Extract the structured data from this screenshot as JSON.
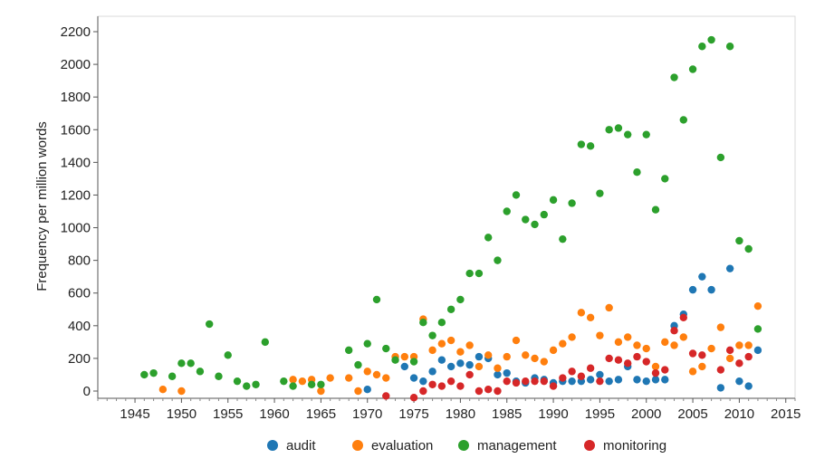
{
  "chart_data": {
    "type": "scatter",
    "title": "",
    "xlabel": "",
    "ylabel": "Frequency per million words",
    "xlim": [
      1941,
      2016
    ],
    "ylim": [
      0,
      2250
    ],
    "x_ticks": [
      1945,
      1950,
      1955,
      1960,
      1965,
      1970,
      1975,
      1980,
      1985,
      1990,
      1995,
      2000,
      2005,
      2010,
      2015
    ],
    "y_ticks": [
      0,
      200,
      400,
      600,
      800,
      1000,
      1200,
      1400,
      1600,
      1800,
      2000,
      2200
    ],
    "grid": false,
    "legend_position": "bottom",
    "series": [
      {
        "name": "audit",
        "color": "#1f77b4",
        "points": [
          [
            1970,
            10
          ],
          [
            1974,
            150
          ],
          [
            1975,
            80
          ],
          [
            1976,
            60
          ],
          [
            1977,
            120
          ],
          [
            1978,
            190
          ],
          [
            1979,
            150
          ],
          [
            1980,
            170
          ],
          [
            1981,
            160
          ],
          [
            1982,
            210
          ],
          [
            1983,
            200
          ],
          [
            1984,
            100
          ],
          [
            1985,
            110
          ],
          [
            1986,
            60
          ],
          [
            1987,
            50
          ],
          [
            1988,
            80
          ],
          [
            1989,
            70
          ],
          [
            1990,
            50
          ],
          [
            1991,
            60
          ],
          [
            1992,
            60
          ],
          [
            1993,
            60
          ],
          [
            1994,
            70
          ],
          [
            1995,
            100
          ],
          [
            1996,
            60
          ],
          [
            1997,
            70
          ],
          [
            1998,
            150
          ],
          [
            1999,
            70
          ],
          [
            2000,
            60
          ],
          [
            2001,
            70
          ],
          [
            2002,
            70
          ],
          [
            2003,
            400
          ],
          [
            2004,
            470
          ],
          [
            2005,
            620
          ],
          [
            2006,
            700
          ],
          [
            2007,
            620
          ],
          [
            2008,
            20
          ],
          [
            2009,
            750
          ],
          [
            2010,
            60
          ],
          [
            2011,
            30
          ],
          [
            2012,
            250
          ]
        ]
      },
      {
        "name": "evaluation",
        "color": "#ff7f0e",
        "points": [
          [
            1948,
            10
          ],
          [
            1950,
            0
          ],
          [
            1962,
            70
          ],
          [
            1963,
            60
          ],
          [
            1964,
            70
          ],
          [
            1965,
            0
          ],
          [
            1966,
            80
          ],
          [
            1968,
            80
          ],
          [
            1969,
            0
          ],
          [
            1970,
            120
          ],
          [
            1971,
            100
          ],
          [
            1972,
            80
          ],
          [
            1973,
            210
          ],
          [
            1974,
            210
          ],
          [
            1975,
            210
          ],
          [
            1976,
            440
          ],
          [
            1977,
            250
          ],
          [
            1978,
            290
          ],
          [
            1979,
            310
          ],
          [
            1980,
            240
          ],
          [
            1981,
            280
          ],
          [
            1982,
            150
          ],
          [
            1983,
            220
          ],
          [
            1984,
            140
          ],
          [
            1985,
            210
          ],
          [
            1986,
            310
          ],
          [
            1987,
            220
          ],
          [
            1988,
            200
          ],
          [
            1989,
            180
          ],
          [
            1990,
            250
          ],
          [
            1991,
            290
          ],
          [
            1992,
            330
          ],
          [
            1993,
            480
          ],
          [
            1994,
            450
          ],
          [
            1995,
            340
          ],
          [
            1996,
            510
          ],
          [
            1997,
            300
          ],
          [
            1998,
            330
          ],
          [
            1999,
            280
          ],
          [
            2000,
            260
          ],
          [
            2001,
            150
          ],
          [
            2002,
            300
          ],
          [
            2003,
            280
          ],
          [
            2004,
            330
          ],
          [
            2005,
            120
          ],
          [
            2006,
            150
          ],
          [
            2007,
            260
          ],
          [
            2008,
            390
          ],
          [
            2009,
            200
          ],
          [
            2010,
            280
          ],
          [
            2011,
            280
          ],
          [
            2012,
            520
          ]
        ]
      },
      {
        "name": "management",
        "color": "#2ca02c",
        "points": [
          [
            1946,
            100
          ],
          [
            1947,
            110
          ],
          [
            1949,
            90
          ],
          [
            1950,
            170
          ],
          [
            1951,
            170
          ],
          [
            1952,
            120
          ],
          [
            1953,
            410
          ],
          [
            1954,
            90
          ],
          [
            1955,
            220
          ],
          [
            1956,
            60
          ],
          [
            1957,
            30
          ],
          [
            1958,
            40
          ],
          [
            1959,
            300
          ],
          [
            1961,
            60
          ],
          [
            1962,
            30
          ],
          [
            1964,
            40
          ],
          [
            1965,
            40
          ],
          [
            1968,
            250
          ],
          [
            1969,
            160
          ],
          [
            1970,
            290
          ],
          [
            1971,
            560
          ],
          [
            1972,
            260
          ],
          [
            1973,
            190
          ],
          [
            1975,
            180
          ],
          [
            1976,
            420
          ],
          [
            1977,
            340
          ],
          [
            1978,
            420
          ],
          [
            1979,
            500
          ],
          [
            1980,
            560
          ],
          [
            1981,
            720
          ],
          [
            1982,
            720
          ],
          [
            1983,
            940
          ],
          [
            1984,
            800
          ],
          [
            1985,
            1100
          ],
          [
            1986,
            1200
          ],
          [
            1987,
            1050
          ],
          [
            1988,
            1020
          ],
          [
            1989,
            1080
          ],
          [
            1990,
            1170
          ],
          [
            1991,
            930
          ],
          [
            1992,
            1150
          ],
          [
            1993,
            1510
          ],
          [
            1994,
            1500
          ],
          [
            1995,
            1210
          ],
          [
            1996,
            1600
          ],
          [
            1997,
            1610
          ],
          [
            1998,
            1570
          ],
          [
            1999,
            1340
          ],
          [
            2000,
            1570
          ],
          [
            2001,
            1110
          ],
          [
            2002,
            1300
          ],
          [
            2003,
            1920
          ],
          [
            2004,
            1660
          ],
          [
            2005,
            1970
          ],
          [
            2006,
            2110
          ],
          [
            2007,
            2150
          ],
          [
            2008,
            1430
          ],
          [
            2009,
            2110
          ],
          [
            2010,
            920
          ],
          [
            2011,
            870
          ],
          [
            2012,
            380
          ]
        ]
      },
      {
        "name": "monitoring",
        "color": "#d62728",
        "points": [
          [
            1972,
            -30
          ],
          [
            1975,
            -40
          ],
          [
            1976,
            0
          ],
          [
            1977,
            40
          ],
          [
            1978,
            30
          ],
          [
            1979,
            60
          ],
          [
            1980,
            30
          ],
          [
            1981,
            100
          ],
          [
            1982,
            0
          ],
          [
            1983,
            10
          ],
          [
            1984,
            0
          ],
          [
            1985,
            60
          ],
          [
            1986,
            50
          ],
          [
            1987,
            60
          ],
          [
            1988,
            60
          ],
          [
            1989,
            60
          ],
          [
            1990,
            30
          ],
          [
            1991,
            80
          ],
          [
            1992,
            120
          ],
          [
            1993,
            90
          ],
          [
            1994,
            140
          ],
          [
            1995,
            60
          ],
          [
            1996,
            200
          ],
          [
            1997,
            190
          ],
          [
            1998,
            170
          ],
          [
            1999,
            210
          ],
          [
            2000,
            180
          ],
          [
            2001,
            110
          ],
          [
            2002,
            130
          ],
          [
            2003,
            370
          ],
          [
            2004,
            450
          ],
          [
            2005,
            230
          ],
          [
            2006,
            220
          ],
          [
            2008,
            130
          ],
          [
            2009,
            250
          ],
          [
            2010,
            170
          ],
          [
            2011,
            210
          ]
        ]
      }
    ]
  }
}
